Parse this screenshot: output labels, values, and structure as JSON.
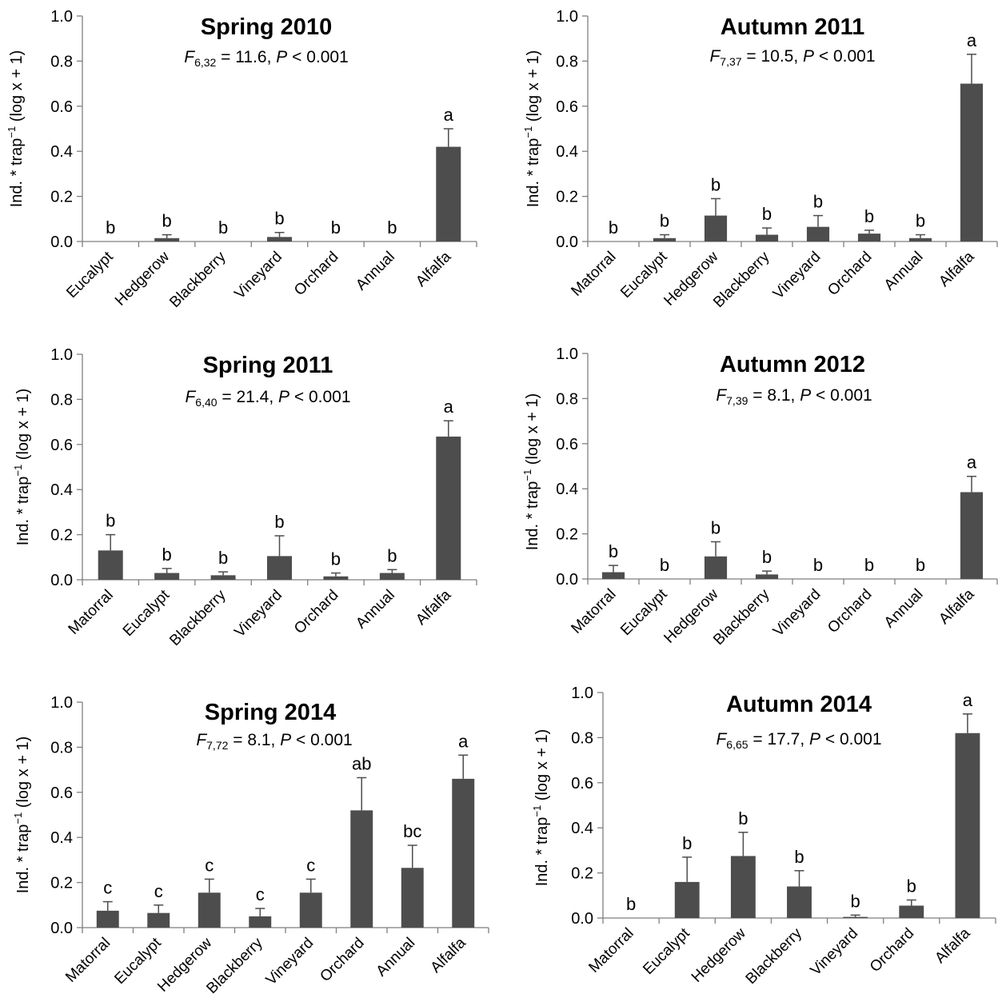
{
  "chart_data": [
    {
      "type": "bar",
      "title": "Spring 2010",
      "stat": {
        "df": "6,32",
        "f": "11.6",
        "p": "P < 0.001"
      },
      "ylabel": {
        "main": "Ind. * trap",
        "sup": "−1",
        "tail": " (log x + 1)"
      },
      "ylim": [
        0,
        1.0
      ],
      "yticks": [
        "0.0",
        "0.2",
        "0.4",
        "0.6",
        "0.8",
        "1.0"
      ],
      "categories": [
        "Eucalypt",
        "Hedgerow",
        "Blackberry",
        "Vineyard",
        "Orchard",
        "Annual",
        "Alfalfa"
      ],
      "values": [
        0.0,
        0.015,
        0.0,
        0.02,
        0.0,
        0.0,
        0.42
      ],
      "errors": [
        0.0,
        0.015,
        0.0,
        0.02,
        0.0,
        0.0,
        0.08
      ],
      "letters": [
        "b",
        "b",
        "b",
        "b",
        "b",
        "b",
        "a"
      ]
    },
    {
      "type": "bar",
      "title": "Autumn 2011",
      "stat": {
        "df": "7,37",
        "f": "10.5",
        "p": "P < 0.001"
      },
      "ylabel": {
        "main": "Ind. * trap",
        "sup": "−1",
        "tail": " (log x + 1)"
      },
      "ylim": [
        0,
        1.0
      ],
      "yticks": [
        "0.0",
        "0.2",
        "0.4",
        "0.6",
        "0.8",
        "1.0"
      ],
      "categories": [
        "Matorral",
        "Eucalypt",
        "Hedgerow",
        "Blackberry",
        "Vineyard",
        "Orchard",
        "Annual",
        "Alfalfa"
      ],
      "values": [
        0.0,
        0.015,
        0.115,
        0.03,
        0.065,
        0.035,
        0.015,
        0.7
      ],
      "errors": [
        0.0,
        0.015,
        0.075,
        0.03,
        0.05,
        0.015,
        0.015,
        0.13
      ],
      "letters": [
        "b",
        "b",
        "b",
        "b",
        "b",
        "b",
        "b",
        "a"
      ]
    },
    {
      "type": "bar",
      "title": "Spring 2011",
      "stat": {
        "df": "6,40",
        "f": "21.4",
        "p": "P < 0.001"
      },
      "ylabel": {
        "main": "Ind. * trap",
        "sup": "−1",
        "tail": " (log x + 1)"
      },
      "ylim": [
        0,
        1.0
      ],
      "yticks": [
        "0.0",
        "0.2",
        "0.4",
        "0.6",
        "0.8",
        "1.0"
      ],
      "categories": [
        "Matorral",
        "Eucalypt",
        "Blackberry",
        "Vineyard",
        "Orchard",
        "Annual",
        "Alfalfa"
      ],
      "values": [
        0.13,
        0.03,
        0.02,
        0.105,
        0.015,
        0.03,
        0.635
      ],
      "errors": [
        0.07,
        0.02,
        0.015,
        0.09,
        0.015,
        0.015,
        0.07
      ],
      "letters": [
        "b",
        "b",
        "b",
        "b",
        "b",
        "b",
        "a"
      ]
    },
    {
      "type": "bar",
      "title": "Autumn 2012",
      "stat": {
        "df": "7,39",
        "f": "8.1",
        "p": "P < 0.001"
      },
      "ylabel": {
        "main": "Ind. * trap",
        "sup": "−1",
        "tail": " (log x + 1)"
      },
      "ylim": [
        0,
        1.0
      ],
      "yticks": [
        "0.0",
        "0.2",
        "0.4",
        "0.6",
        "0.8",
        "1.0"
      ],
      "categories": [
        "Matorral",
        "Eucalypt",
        "Hedgerow",
        "Blackberry",
        "Vineyard",
        "Orchard",
        "Annual",
        "Alfalfa"
      ],
      "values": [
        0.03,
        0.0,
        0.1,
        0.02,
        0.0,
        0.0,
        0.0,
        0.385
      ],
      "errors": [
        0.03,
        0.0,
        0.065,
        0.015,
        0.0,
        0.0,
        0.0,
        0.07
      ],
      "letters": [
        "b",
        "b",
        "b",
        "b",
        "b",
        "b",
        "b",
        "a"
      ]
    },
    {
      "type": "bar",
      "title": "Spring 2014",
      "stat": {
        "df": "7,72",
        "f": "8.1",
        "p": "P < 0.001"
      },
      "ylabel": {
        "main": "Ind. * trap",
        "sup": "−1",
        "tail": " (log x + 1)"
      },
      "ylim": [
        0,
        1.0
      ],
      "yticks": [
        "0.0",
        "0.2",
        "0.4",
        "0.6",
        "0.8",
        "1.0"
      ],
      "categories": [
        "Matorral",
        "Eucalypt",
        "Hedgerow",
        "Blackberry",
        "Vineyard",
        "Orchard",
        "Annual",
        "Alfalfa"
      ],
      "values": [
        0.075,
        0.065,
        0.155,
        0.05,
        0.155,
        0.52,
        0.265,
        0.66
      ],
      "errors": [
        0.04,
        0.035,
        0.06,
        0.035,
        0.06,
        0.145,
        0.1,
        0.105
      ],
      "letters": [
        "c",
        "c",
        "c",
        "c",
        "c",
        "ab",
        "bc",
        "a"
      ]
    },
    {
      "type": "bar",
      "title": "Autumn 2014",
      "stat": {
        "df": "6,65",
        "f": "17.7",
        "p": "P < 0.001"
      },
      "ylabel": {
        "main": "Ind. * trap",
        "sup": "−1",
        "tail": " (log x + 1)"
      },
      "ylim": [
        0,
        1.0
      ],
      "yticks": [
        "0.0",
        "0.2",
        "0.4",
        "0.6",
        "0.8",
        "1.0"
      ],
      "categories": [
        "Matorral",
        "Eucalypt",
        "Hedgerow",
        "Blackberry",
        "Vineyard",
        "Orchard",
        "Alfalfa"
      ],
      "values": [
        0.0,
        0.16,
        0.275,
        0.14,
        0.005,
        0.055,
        0.82
      ],
      "errors": [
        0.0,
        0.11,
        0.105,
        0.07,
        0.008,
        0.025,
        0.085
      ],
      "letters": [
        "b",
        "b",
        "b",
        "b",
        "b",
        "b",
        "a"
      ]
    }
  ],
  "colors": {
    "bar": "#4d4d4d",
    "axis": "#7f7f7f"
  }
}
